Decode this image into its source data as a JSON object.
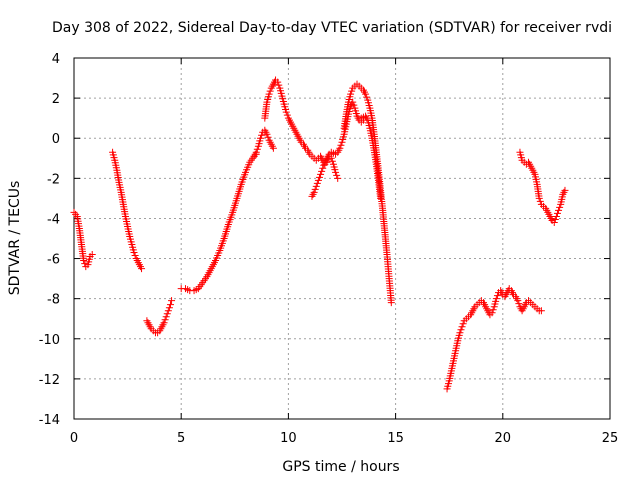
{
  "chart_data": {
    "type": "scatter",
    "title": "Day 308 of 2022, Sidereal Day-to-day VTEC variation (SDTVAR) for receiver rvdi",
    "xlabel": "GPS time / hours",
    "ylabel": "SDTVAR / TECUs",
    "xlim": [
      0,
      25
    ],
    "ylim": [
      -14,
      4
    ],
    "xticks": [
      0,
      5,
      10,
      15,
      20,
      25
    ],
    "yticks": [
      -14,
      -12,
      -10,
      -8,
      -6,
      -4,
      -2,
      0,
      2,
      4
    ],
    "grid": true,
    "marker": "+",
    "color": "#ff0000",
    "series": [
      {
        "name": "segment-1",
        "points": [
          [
            0.0,
            -3.7
          ],
          [
            0.15,
            -3.9
          ],
          [
            0.25,
            -4.5
          ],
          [
            0.35,
            -5.3
          ],
          [
            0.45,
            -6.1
          ],
          [
            0.55,
            -6.4
          ],
          [
            0.65,
            -6.3
          ],
          [
            0.75,
            -5.9
          ],
          [
            0.85,
            -5.8
          ]
        ]
      },
      {
        "name": "segment-2",
        "points": [
          [
            1.8,
            -0.7
          ],
          [
            1.9,
            -1.1
          ],
          [
            2.0,
            -1.6
          ],
          [
            2.1,
            -2.2
          ],
          [
            2.2,
            -2.7
          ],
          [
            2.3,
            -3.3
          ],
          [
            2.4,
            -3.9
          ],
          [
            2.5,
            -4.4
          ],
          [
            2.6,
            -4.9
          ],
          [
            2.7,
            -5.3
          ],
          [
            2.8,
            -5.7
          ],
          [
            2.9,
            -6.0
          ],
          [
            3.0,
            -6.2
          ],
          [
            3.1,
            -6.4
          ],
          [
            3.15,
            -6.5
          ]
        ]
      },
      {
        "name": "segment-3",
        "points": [
          [
            3.4,
            -9.1
          ],
          [
            3.5,
            -9.3
          ],
          [
            3.6,
            -9.5
          ],
          [
            3.7,
            -9.6
          ],
          [
            3.8,
            -9.7
          ],
          [
            3.9,
            -9.7
          ],
          [
            4.0,
            -9.6
          ],
          [
            4.1,
            -9.4
          ],
          [
            4.2,
            -9.2
          ],
          [
            4.3,
            -8.9
          ],
          [
            4.4,
            -8.6
          ],
          [
            4.5,
            -8.3
          ],
          [
            4.55,
            -8.1
          ]
        ]
      },
      {
        "name": "segment-4",
        "points": [
          [
            5.0,
            -7.5
          ],
          [
            5.2,
            -7.5
          ],
          [
            5.4,
            -7.6
          ],
          [
            5.6,
            -7.6
          ],
          [
            5.8,
            -7.5
          ],
          [
            6.0,
            -7.2
          ],
          [
            6.2,
            -6.9
          ],
          [
            6.4,
            -6.5
          ],
          [
            6.6,
            -6.1
          ],
          [
            6.8,
            -5.6
          ],
          [
            7.0,
            -5.0
          ],
          [
            7.2,
            -4.3
          ],
          [
            7.4,
            -3.7
          ],
          [
            7.6,
            -3.0
          ],
          [
            7.8,
            -2.3
          ],
          [
            8.0,
            -1.7
          ],
          [
            8.2,
            -1.2
          ],
          [
            8.4,
            -0.9
          ],
          [
            8.5,
            -0.8
          ]
        ]
      },
      {
        "name": "segment-5",
        "points": [
          [
            8.4,
            -0.9
          ],
          [
            8.5,
            -0.7
          ],
          [
            8.6,
            -0.4
          ],
          [
            8.7,
            0.0
          ],
          [
            8.8,
            0.3
          ],
          [
            8.9,
            0.4
          ],
          [
            9.0,
            0.2
          ],
          [
            9.1,
            -0.1
          ],
          [
            9.2,
            -0.3
          ],
          [
            9.3,
            -0.5
          ]
        ]
      },
      {
        "name": "segment-6",
        "points": [
          [
            8.9,
            1.0
          ],
          [
            9.0,
            1.8
          ],
          [
            9.1,
            2.2
          ],
          [
            9.2,
            2.5
          ],
          [
            9.3,
            2.7
          ],
          [
            9.4,
            2.9
          ],
          [
            9.5,
            2.8
          ],
          [
            9.6,
            2.5
          ],
          [
            9.7,
            2.1
          ],
          [
            9.8,
            1.7
          ],
          [
            9.9,
            1.3
          ],
          [
            10.0,
            1.0
          ],
          [
            10.1,
            0.8
          ],
          [
            10.2,
            0.6
          ],
          [
            10.3,
            0.4
          ],
          [
            10.4,
            0.2
          ],
          [
            10.5,
            0.0
          ],
          [
            10.6,
            -0.2
          ],
          [
            10.7,
            -0.3
          ],
          [
            10.8,
            -0.5
          ],
          [
            10.9,
            -0.6
          ],
          [
            11.0,
            -0.8
          ],
          [
            11.1,
            -0.9
          ],
          [
            11.2,
            -1.0
          ],
          [
            11.3,
            -1.1
          ],
          [
            11.4,
            -1.0
          ],
          [
            11.5,
            -0.9
          ],
          [
            11.6,
            -1.1
          ],
          [
            11.7,
            -1.3
          ],
          [
            11.8,
            -1.2
          ],
          [
            11.9,
            -0.9
          ],
          [
            12.0,
            -1.0
          ],
          [
            12.1,
            -1.3
          ],
          [
            12.2,
            -1.7
          ],
          [
            12.3,
            -2.0
          ]
        ]
      },
      {
        "name": "segment-7",
        "points": [
          [
            11.1,
            -2.9
          ],
          [
            11.2,
            -2.7
          ],
          [
            11.3,
            -2.4
          ],
          [
            11.4,
            -2.1
          ],
          [
            11.5,
            -1.8
          ],
          [
            11.6,
            -1.5
          ],
          [
            11.7,
            -1.2
          ],
          [
            11.8,
            -1.0
          ],
          [
            11.9,
            -0.8
          ],
          [
            12.0,
            -0.7
          ],
          [
            12.2,
            -0.8
          ],
          [
            12.3,
            -0.7
          ],
          [
            12.4,
            -0.5
          ],
          [
            12.5,
            -0.2
          ],
          [
            12.6,
            0.2
          ],
          [
            12.7,
            0.7
          ],
          [
            12.8,
            1.2
          ],
          [
            12.9,
            1.6
          ],
          [
            13.0,
            1.8
          ],
          [
            13.1,
            1.5
          ],
          [
            13.2,
            1.1
          ],
          [
            13.3,
            0.9
          ],
          [
            13.4,
            0.8
          ],
          [
            13.5,
            0.9
          ]
        ]
      },
      {
        "name": "segment-8",
        "points": [
          [
            12.6,
            0.5
          ],
          [
            12.7,
            1.2
          ],
          [
            12.8,
            1.8
          ],
          [
            12.9,
            2.2
          ],
          [
            13.0,
            2.5
          ],
          [
            13.1,
            2.6
          ],
          [
            13.2,
            2.7
          ],
          [
            13.3,
            2.6
          ],
          [
            13.4,
            2.5
          ],
          [
            13.5,
            2.4
          ],
          [
            13.6,
            2.2
          ],
          [
            13.7,
            1.9
          ],
          [
            13.8,
            1.5
          ],
          [
            13.9,
            1.0
          ],
          [
            14.0,
            0.2
          ],
          [
            14.1,
            -0.7
          ],
          [
            14.2,
            -1.6
          ],
          [
            14.3,
            -2.6
          ],
          [
            14.4,
            -3.6
          ],
          [
            14.5,
            -4.7
          ],
          [
            14.6,
            -5.8
          ],
          [
            14.7,
            -7.0
          ],
          [
            14.8,
            -8.2
          ]
        ]
      },
      {
        "name": "segment-9",
        "points": [
          [
            13.4,
            1.0
          ],
          [
            13.6,
            1.1
          ],
          [
            13.7,
            0.9
          ],
          [
            13.8,
            0.5
          ],
          [
            13.9,
            0.0
          ],
          [
            14.0,
            -0.6
          ],
          [
            14.1,
            -1.3
          ],
          [
            14.2,
            -2.1
          ],
          [
            14.3,
            -3.0
          ]
        ]
      },
      {
        "name": "segment-10",
        "points": [
          [
            17.4,
            -12.5
          ],
          [
            17.5,
            -12.1
          ],
          [
            17.6,
            -11.6
          ],
          [
            17.7,
            -11.1
          ],
          [
            17.8,
            -10.6
          ],
          [
            17.9,
            -10.1
          ],
          [
            18.0,
            -9.7
          ],
          [
            18.1,
            -9.4
          ],
          [
            18.2,
            -9.1
          ],
          [
            18.3,
            -9.0
          ],
          [
            18.4,
            -8.9
          ],
          [
            18.5,
            -8.8
          ],
          [
            18.6,
            -8.6
          ],
          [
            18.7,
            -8.4
          ],
          [
            18.8,
            -8.3
          ],
          [
            18.9,
            -8.2
          ],
          [
            19.0,
            -8.1
          ],
          [
            19.1,
            -8.2
          ],
          [
            19.2,
            -8.4
          ],
          [
            19.3,
            -8.6
          ],
          [
            19.4,
            -8.8
          ],
          [
            19.5,
            -8.7
          ],
          [
            19.6,
            -8.4
          ],
          [
            19.7,
            -8.0
          ],
          [
            19.8,
            -7.7
          ],
          [
            19.9,
            -7.6
          ],
          [
            20.0,
            -7.8
          ],
          [
            20.1,
            -7.9
          ],
          [
            20.2,
            -7.7
          ],
          [
            20.3,
            -7.5
          ],
          [
            20.4,
            -7.6
          ],
          [
            20.5,
            -7.8
          ],
          [
            20.6,
            -7.9
          ],
          [
            20.7,
            -8.1
          ],
          [
            20.8,
            -8.4
          ],
          [
            20.9,
            -8.6
          ],
          [
            21.0,
            -8.4
          ],
          [
            21.1,
            -8.2
          ],
          [
            21.2,
            -8.1
          ],
          [
            21.3,
            -8.2
          ],
          [
            21.4,
            -8.3
          ],
          [
            21.5,
            -8.4
          ],
          [
            21.6,
            -8.5
          ],
          [
            21.7,
            -8.6
          ],
          [
            21.8,
            -8.6
          ]
        ]
      },
      {
        "name": "segment-11",
        "points": [
          [
            20.8,
            -0.7
          ],
          [
            20.9,
            -1.1
          ],
          [
            21.0,
            -1.2
          ],
          [
            21.1,
            -1.3
          ],
          [
            21.2,
            -1.2
          ],
          [
            21.3,
            -1.4
          ],
          [
            21.4,
            -1.6
          ],
          [
            21.5,
            -1.8
          ],
          [
            21.6,
            -2.3
          ],
          [
            21.7,
            -3.0
          ],
          [
            21.8,
            -3.3
          ],
          [
            21.9,
            -3.4
          ],
          [
            22.0,
            -3.5
          ],
          [
            22.1,
            -3.7
          ],
          [
            22.2,
            -3.9
          ],
          [
            22.3,
            -4.1
          ],
          [
            22.4,
            -4.2
          ],
          [
            22.5,
            -3.9
          ],
          [
            22.6,
            -3.6
          ],
          [
            22.7,
            -3.3
          ],
          [
            22.8,
            -2.8
          ],
          [
            22.9,
            -2.6
          ]
        ]
      }
    ]
  }
}
